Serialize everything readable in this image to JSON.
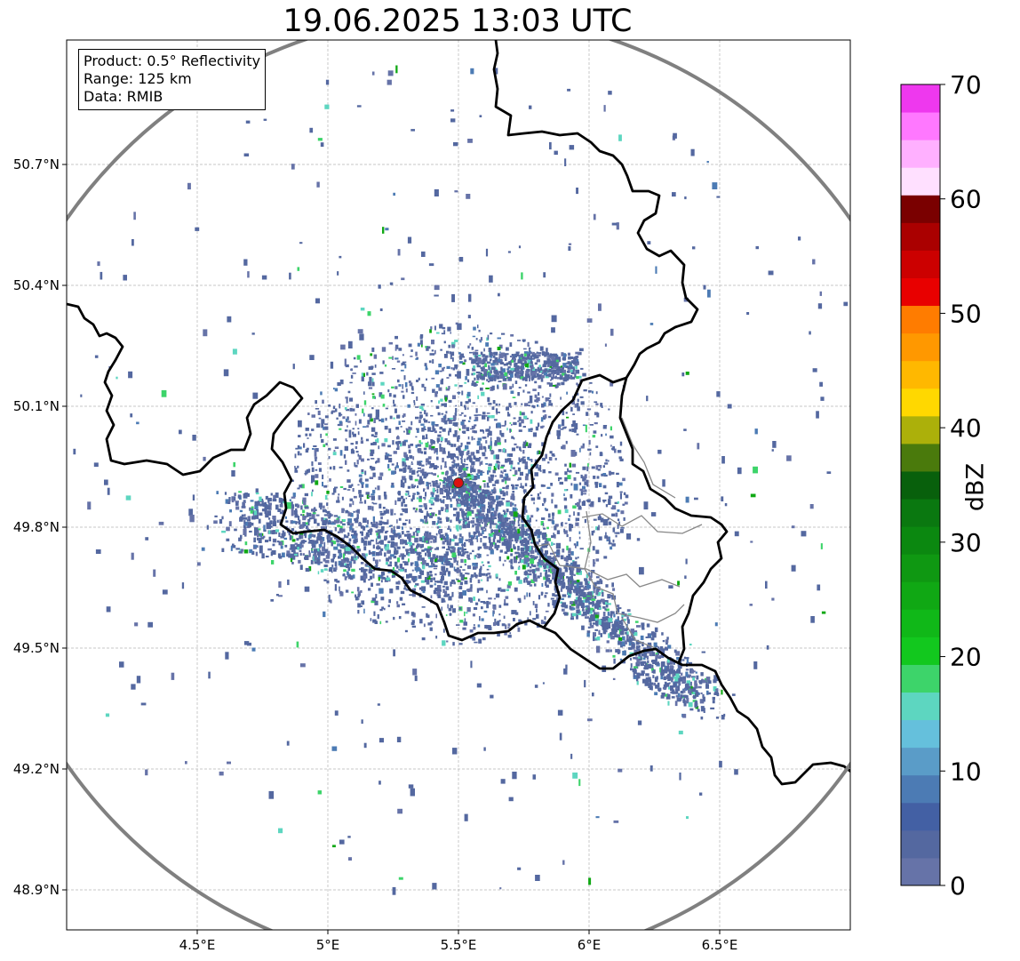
{
  "title": "19.06.2025 13:03 UTC",
  "info": {
    "product": "Product: 0.5° Reflectivity",
    "range": "Range: 125 km",
    "source": "Data: RMIB"
  },
  "map": {
    "lon_range": [
      4.0,
      7.0
    ],
    "lat_range": [
      48.8,
      50.98
    ],
    "lon_ticks": [
      {
        "value": 4.5,
        "label": "4.5°E"
      },
      {
        "value": 5.0,
        "label": "5°E"
      },
      {
        "value": 5.5,
        "label": "5.5°E"
      },
      {
        "value": 6.0,
        "label": "6°E"
      },
      {
        "value": 6.5,
        "label": "6.5°E"
      }
    ],
    "lat_ticks": [
      {
        "value": 48.9,
        "label": "48.9°N"
      },
      {
        "value": 49.2,
        "label": "49.2°N"
      },
      {
        "value": 49.5,
        "label": "49.5°N"
      },
      {
        "value": 49.8,
        "label": "49.8°N"
      },
      {
        "value": 50.1,
        "label": "50.1°N"
      },
      {
        "value": 50.4,
        "label": "50.4°N"
      },
      {
        "value": 50.7,
        "label": "50.7°N"
      }
    ],
    "radar_site": {
      "lon": 5.5,
      "lat": 49.91
    },
    "grid": true,
    "range_ring_color": "#808080",
    "site_color": "#dd1111"
  },
  "colorbar": {
    "label": "dBZ",
    "min": 0,
    "max": 70,
    "ticks": [
      "0",
      "10",
      "20",
      "30",
      "40",
      "50",
      "60",
      "70"
    ],
    "colors": [
      "#6673a8",
      "#5468a0",
      "#4360a4",
      "#4c7bb4",
      "#5a9cc8",
      "#65c0dc",
      "#5dd6c0",
      "#3dd46a",
      "#12c81e",
      "#10b818",
      "#10a814",
      "#0f9812",
      "#0b8810",
      "#0a7810",
      "#08600c",
      "#4a7a0c",
      "#acb00a",
      "#ffd800",
      "#ffb800",
      "#ff9800",
      "#ff7c00",
      "#e80000",
      "#cc0000",
      "#aa0000",
      "#7a0000",
      "#ffe0ff",
      "#ffb0ff",
      "#ff78ff",
      "#ee38ee"
    ]
  }
}
